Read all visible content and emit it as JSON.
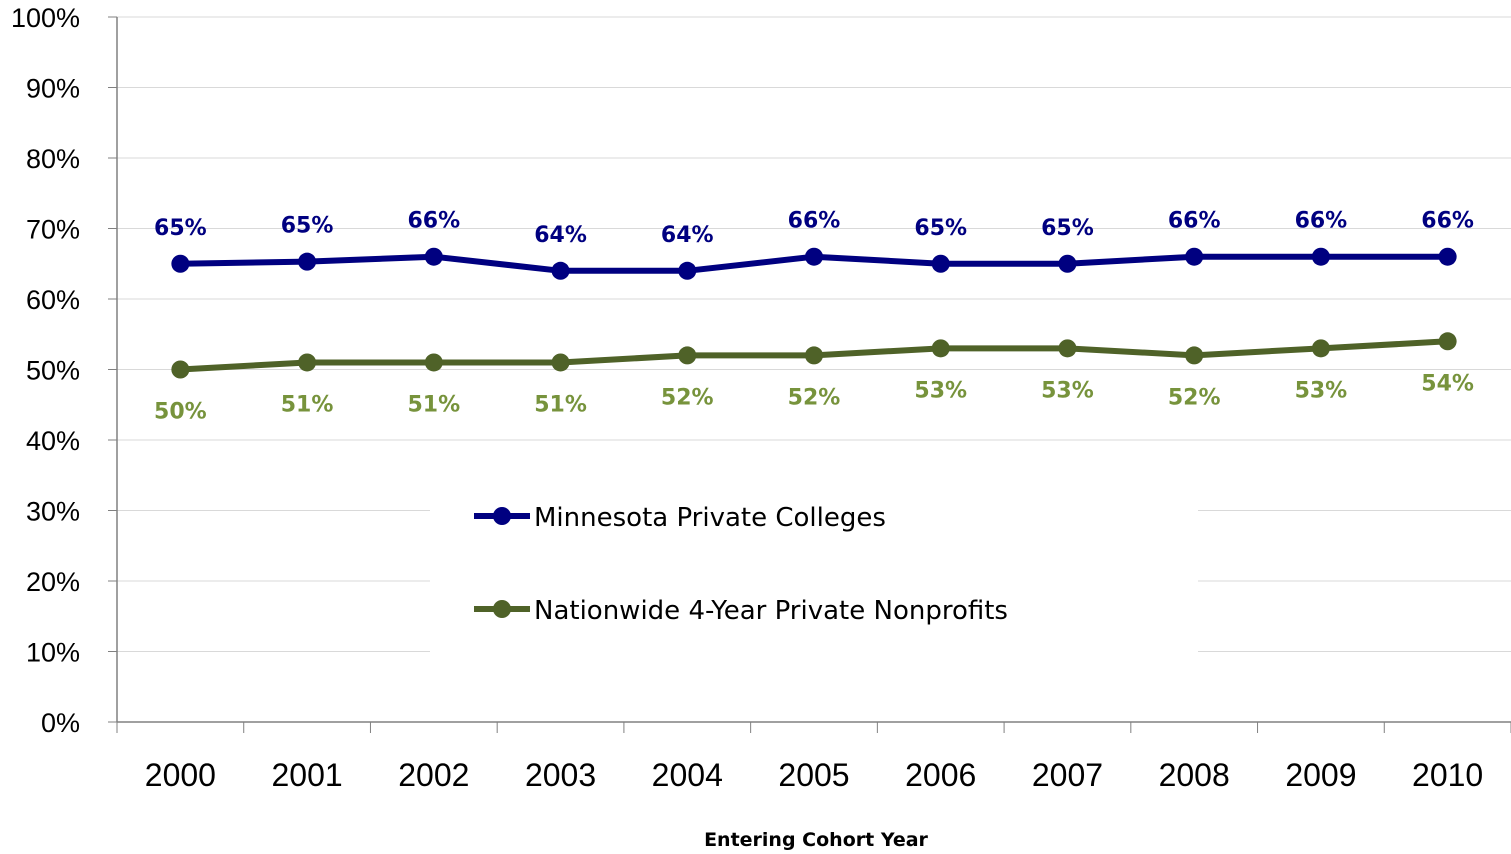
{
  "chart_data": {
    "type": "line",
    "title": "",
    "xlabel": "Entering Cohort Year",
    "ylabel": "",
    "x": [
      "2000",
      "2001",
      "2002",
      "2003",
      "2004",
      "2005",
      "2006",
      "2007",
      "2008",
      "2009",
      "2010"
    ],
    "ylim": [
      0,
      100
    ],
    "yticks": [
      "0%",
      "10%",
      "20%",
      "30%",
      "40%",
      "50%",
      "60%",
      "70%",
      "80%",
      "90%",
      "100%"
    ],
    "grid": true,
    "legend_position": "center",
    "series": [
      {
        "name": "Minnesota Private Colleges",
        "color": "#000080",
        "values": [
          65,
          65.3,
          66,
          64,
          64,
          66,
          65,
          65,
          66,
          66,
          66
        ],
        "labels": [
          "65%",
          "65%",
          "66%",
          "64%",
          "64%",
          "66%",
          "65%",
          "65%",
          "66%",
          "66%",
          "66%"
        ],
        "label_position": "above"
      },
      {
        "name": "Nationwide 4-Year Private Nonprofits",
        "color": "#4F6228",
        "label_color": "#77933C",
        "values": [
          50,
          51,
          51,
          51,
          52,
          52,
          53,
          53,
          52,
          53,
          54
        ],
        "labels": [
          "50%",
          "51%",
          "51%",
          "51%",
          "52%",
          "52%",
          "53%",
          "53%",
          "52%",
          "53%",
          "54%"
        ],
        "label_position": "below"
      }
    ]
  }
}
